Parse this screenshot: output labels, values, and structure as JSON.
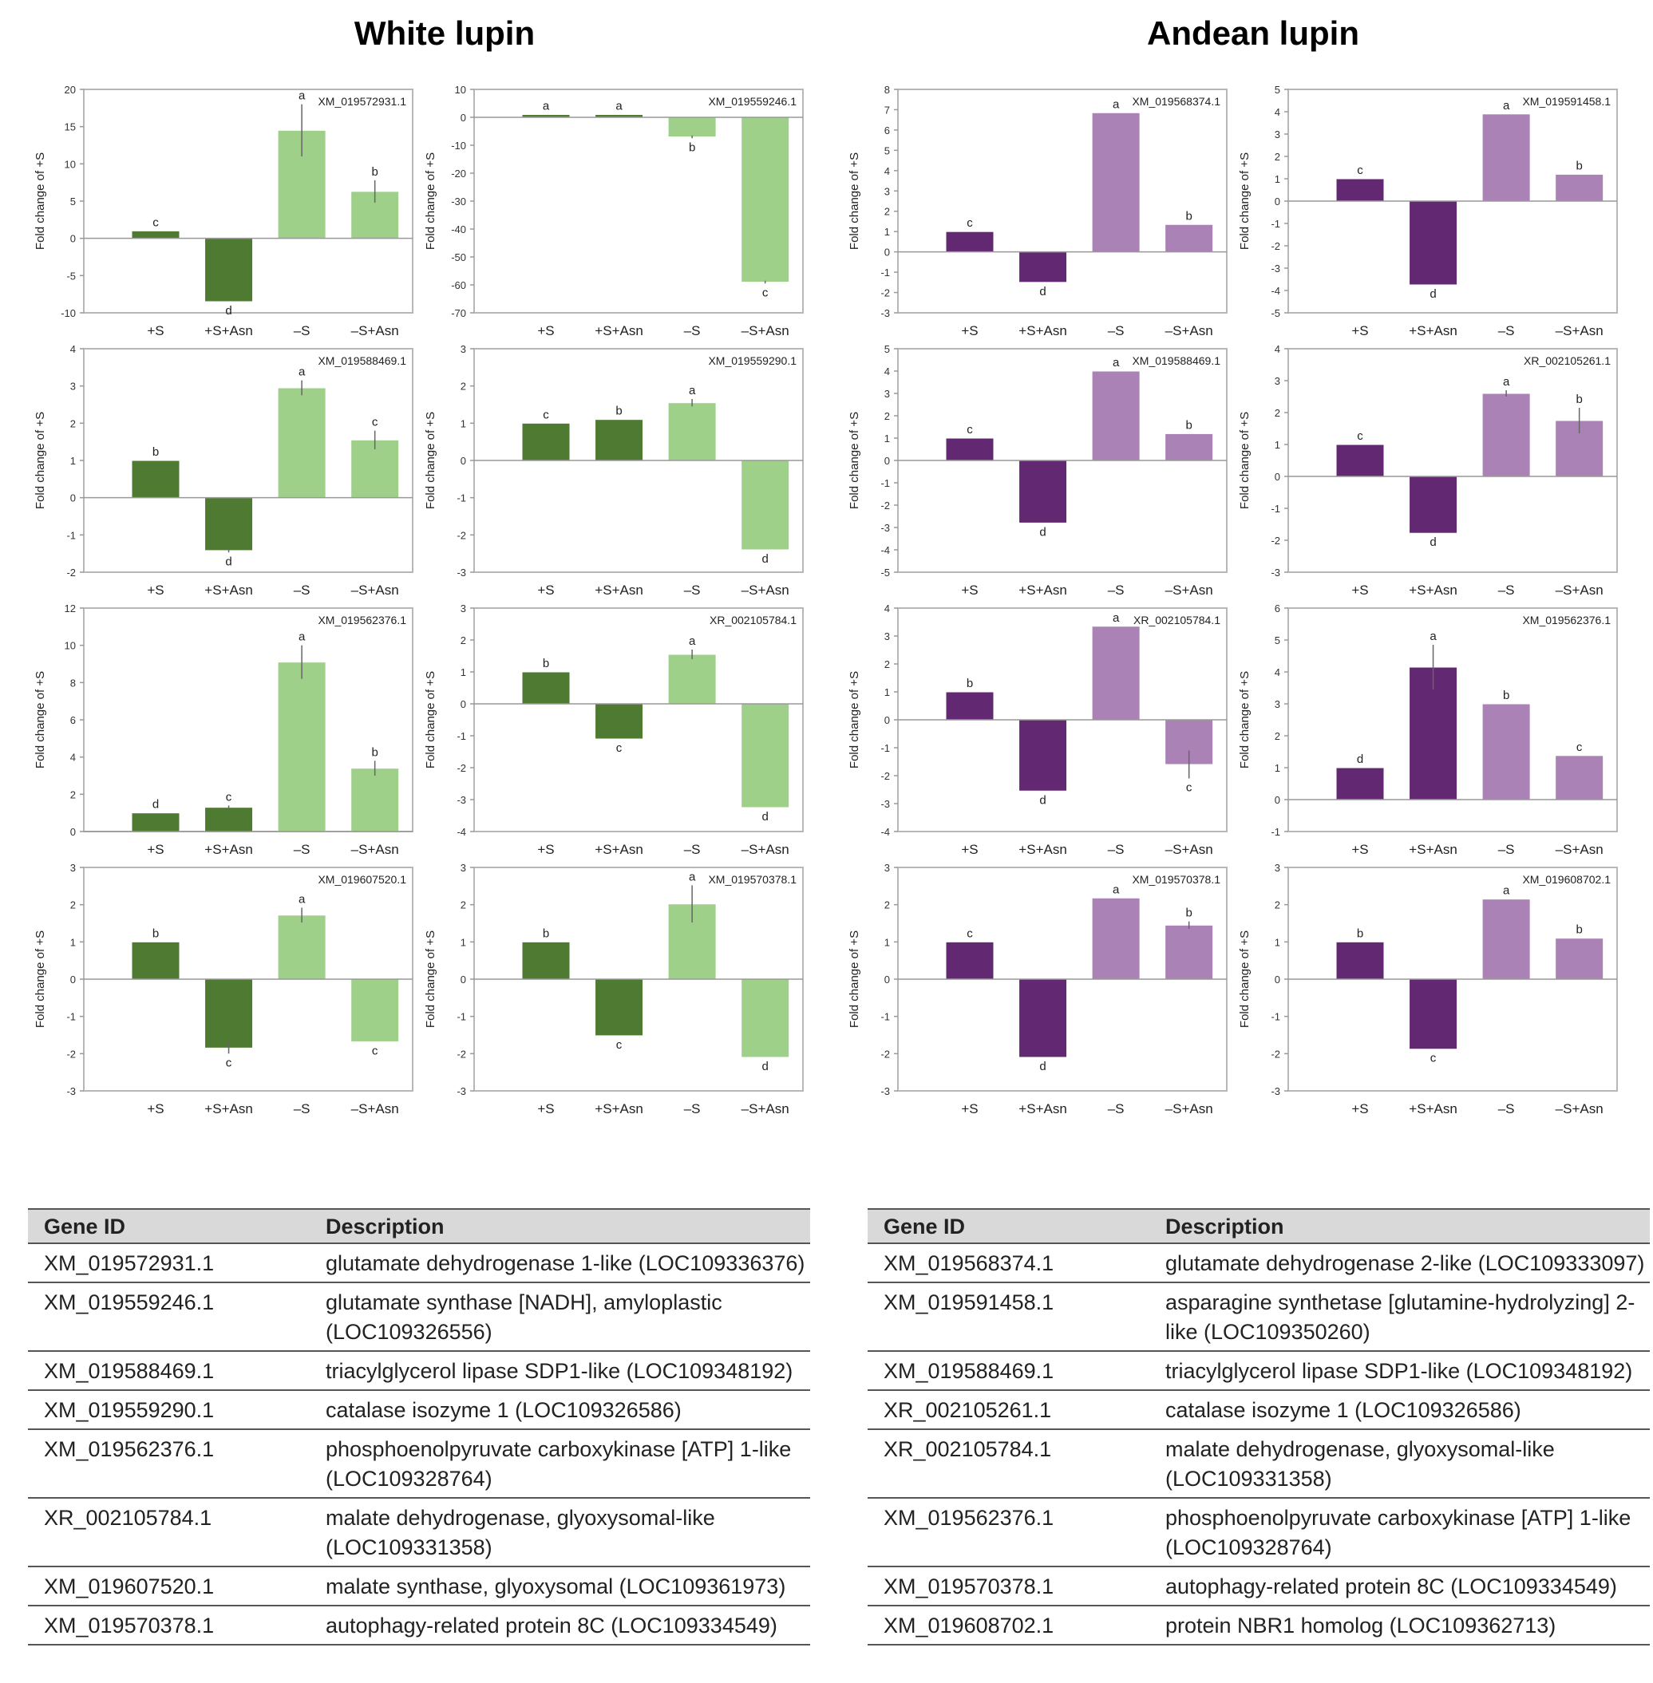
{
  "titles": {
    "white": "White lupin",
    "andean": "Andean lupin"
  },
  "shared": {
    "ylabel": "Fold change of +S",
    "categories": [
      "+S",
      "+S+Asn",
      "–S",
      "–S+Asn"
    ]
  },
  "colors": {
    "white_dark": "#4e7a31",
    "white_light": "#9fd08a",
    "andean_dark": "#632872",
    "andean_light": "#aa82b5",
    "axis": "#999999",
    "border": "#b7b7b7"
  },
  "chart_data": [
    {
      "panel": "White lupin",
      "type": "bar",
      "gene": "XM_019572931.1",
      "ylim": [
        -10,
        20
      ],
      "yticks": [
        -10,
        -5,
        0,
        5,
        10,
        15,
        20
      ],
      "values": [
        1,
        -8.5,
        14.5,
        6.3
      ],
      "errors": [
        0,
        0,
        3.5,
        1.5
      ],
      "letters": [
        "c",
        "d",
        "a",
        "b"
      ]
    },
    {
      "panel": "White lupin",
      "type": "bar",
      "gene": "XM_019559246.1",
      "ylim": [
        -70,
        10
      ],
      "yticks": [
        -70,
        -60,
        -50,
        -40,
        -30,
        -20,
        -10,
        0,
        10
      ],
      "values": [
        1,
        1,
        -7,
        -59
      ],
      "errors": [
        0,
        0,
        0.5,
        0.5
      ],
      "letters": [
        "a",
        "a",
        "b",
        "c"
      ]
    },
    {
      "panel": "White lupin",
      "type": "bar",
      "gene": "XM_019588469.1",
      "ylim": [
        -2,
        4
      ],
      "yticks": [
        -2,
        -1,
        0,
        1,
        2,
        3,
        4
      ],
      "values": [
        1,
        -1.42,
        2.95,
        1.55
      ],
      "errors": [
        0,
        0.05,
        0.2,
        0.25
      ],
      "letters": [
        "b",
        "d",
        "a",
        "c"
      ]
    },
    {
      "panel": "White lupin",
      "type": "bar",
      "gene": "XM_019559290.1",
      "ylim": [
        -3,
        3
      ],
      "yticks": [
        -3,
        -2,
        -1,
        0,
        1,
        2,
        3
      ],
      "values": [
        1,
        1.1,
        1.55,
        -2.4
      ],
      "errors": [
        0,
        0,
        0.1,
        0
      ],
      "letters": [
        "c",
        "b",
        "a",
        "d"
      ]
    },
    {
      "panel": "White lupin",
      "type": "bar",
      "gene": "XM_019562376.1",
      "ylim": [
        0,
        12
      ],
      "yticks": [
        0,
        2,
        4,
        6,
        8,
        10,
        12
      ],
      "values": [
        1,
        1.3,
        9.1,
        3.4
      ],
      "errors": [
        0,
        0.1,
        0.9,
        0.4
      ],
      "letters": [
        "d",
        "c",
        "a",
        "b"
      ]
    },
    {
      "panel": "White lupin",
      "type": "bar",
      "gene": "XR_002105784.1",
      "ylim": [
        -4,
        3
      ],
      "yticks": [
        -4,
        -3,
        -2,
        -1,
        0,
        1,
        2,
        3
      ],
      "values": [
        1,
        -1.1,
        1.55,
        -3.25
      ],
      "errors": [
        0,
        0,
        0.15,
        0
      ],
      "letters": [
        "b",
        "c",
        "a",
        "d"
      ]
    },
    {
      "panel": "White lupin",
      "type": "bar",
      "gene": "XM_019607520.1",
      "ylim": [
        -3,
        3
      ],
      "yticks": [
        -3,
        -2,
        -1,
        0,
        1,
        2,
        3
      ],
      "values": [
        1,
        -1.85,
        1.72,
        -1.68
      ],
      "errors": [
        0,
        0.15,
        0.2,
        0
      ],
      "letters": [
        "b",
        "c",
        "a",
        "c"
      ]
    },
    {
      "panel": "White lupin",
      "type": "bar",
      "gene": "XM_019570378.1",
      "ylim": [
        -3,
        3
      ],
      "yticks": [
        -3,
        -2,
        -1,
        0,
        1,
        2,
        3
      ],
      "values": [
        1,
        -1.52,
        2.02,
        -2.1
      ],
      "errors": [
        0,
        0,
        0.5,
        0
      ],
      "letters": [
        "b",
        "c",
        "a",
        "d"
      ]
    },
    {
      "panel": "Andean lupin",
      "type": "bar",
      "gene": "XM_019568374.1",
      "ylim": [
        -3,
        8
      ],
      "yticks": [
        -3,
        -2,
        -1,
        0,
        1,
        2,
        3,
        4,
        5,
        6,
        7,
        8
      ],
      "values": [
        1,
        -1.5,
        6.85,
        1.35
      ],
      "errors": [
        0,
        0,
        0,
        0
      ],
      "letters": [
        "c",
        "d",
        "a",
        "b"
      ]
    },
    {
      "panel": "Andean lupin",
      "type": "bar",
      "gene": "XM_019591458.1",
      "ylim": [
        -5,
        5
      ],
      "yticks": [
        -5,
        -4,
        -3,
        -2,
        -1,
        0,
        1,
        2,
        3,
        4,
        5
      ],
      "values": [
        1,
        -3.75,
        3.9,
        1.2
      ],
      "errors": [
        0,
        0,
        0,
        0
      ],
      "letters": [
        "c",
        "d",
        "a",
        "b"
      ]
    },
    {
      "panel": "Andean lupin",
      "type": "bar",
      "gene": "XM_019588469.1",
      "ylim": [
        -5,
        5
      ],
      "yticks": [
        -5,
        -4,
        -3,
        -2,
        -1,
        0,
        1,
        2,
        3,
        4,
        5
      ],
      "values": [
        1,
        -2.8,
        4,
        1.2
      ],
      "errors": [
        0,
        0,
        0,
        0
      ],
      "letters": [
        "c",
        "d",
        "a",
        "b"
      ]
    },
    {
      "panel": "Andean lupin",
      "type": "bar",
      "gene": "XR_002105261.1",
      "ylim": [
        -3,
        4
      ],
      "yticks": [
        -3,
        -2,
        -1,
        0,
        1,
        2,
        3,
        4
      ],
      "values": [
        1,
        -1.78,
        2.6,
        1.75
      ],
      "errors": [
        0,
        0,
        0.1,
        0.4
      ],
      "letters": [
        "c",
        "d",
        "a",
        "b"
      ]
    },
    {
      "panel": "Andean lupin",
      "type": "bar",
      "gene": "XR_002105784.1",
      "ylim": [
        -4,
        4
      ],
      "yticks": [
        -4,
        -3,
        -2,
        -1,
        0,
        1,
        2,
        3,
        4
      ],
      "values": [
        1,
        -2.55,
        3.35,
        -1.6
      ],
      "errors": [
        0,
        0,
        0,
        0.5
      ],
      "letters": [
        "b",
        "d",
        "a",
        "c"
      ]
    },
    {
      "panel": "Andean lupin",
      "type": "bar",
      "gene": "XM_019562376.1",
      "ylim": [
        -1,
        6
      ],
      "yticks": [
        -1,
        0,
        1,
        2,
        3,
        4,
        5,
        6
      ],
      "values": [
        1,
        4.15,
        3,
        1.38
      ],
      "errors": [
        0,
        0.7,
        0,
        0
      ],
      "letters": [
        "d",
        "a",
        "b",
        "c"
      ]
    },
    {
      "panel": "Andean lupin",
      "type": "bar",
      "gene": "XM_019570378.1",
      "ylim": [
        -3,
        3
      ],
      "yticks": [
        -3,
        -2,
        -1,
        0,
        1,
        2,
        3
      ],
      "values": [
        1,
        -2.1,
        2.18,
        1.45
      ],
      "errors": [
        0,
        0,
        0,
        0.1
      ],
      "letters": [
        "c",
        "d",
        "a",
        "b"
      ]
    },
    {
      "panel": "Andean lupin",
      "type": "bar",
      "gene": "XM_019608702.1",
      "ylim": [
        -3,
        3
      ],
      "yticks": [
        -3,
        -2,
        -1,
        0,
        1,
        2,
        3
      ],
      "values": [
        1,
        -1.88,
        2.15,
        1.1
      ],
      "errors": [
        0,
        0,
        0,
        0
      ],
      "letters": [
        "b",
        "c",
        "a",
        "b"
      ]
    }
  ],
  "tables": {
    "header": {
      "gene_id": "Gene ID",
      "description": "Description"
    },
    "white": [
      {
        "id": "XM_019572931.1",
        "desc": "glutamate dehydrogenase 1-like (LOC109336376)"
      },
      {
        "id": "XM_019559246.1",
        "desc": "glutamate synthase [NADH], amyloplastic (LOC109326556)"
      },
      {
        "id": "XM_019588469.1",
        "desc": "triacylglycerol lipase SDP1-like (LOC109348192)"
      },
      {
        "id": "XM_019559290.1",
        "desc": "catalase isozyme 1 (LOC109326586)"
      },
      {
        "id": "XM_019562376.1",
        "desc": "phosphoenolpyruvate carboxykinase [ATP] 1-like (LOC109328764)"
      },
      {
        "id": "XR_002105784.1",
        "desc": "malate dehydrogenase, glyoxysomal-like (LOC109331358)"
      },
      {
        "id": "XM_019607520.1",
        "desc": "malate synthase, glyoxysomal (LOC109361973)"
      },
      {
        "id": "XM_019570378.1",
        "desc": "autophagy-related protein 8C (LOC109334549)"
      }
    ],
    "andean": [
      {
        "id": "XM_019568374.1",
        "desc": "glutamate dehydrogenase 2-like (LOC109333097)"
      },
      {
        "id": "XM_019591458.1",
        "desc": "asparagine synthetase [glutamine-hydrolyzing] 2-like (LOC109350260)"
      },
      {
        "id": "XM_019588469.1",
        "desc": "triacylglycerol lipase SDP1-like (LOC109348192)"
      },
      {
        "id": "XR_002105261.1",
        "desc": "catalase isozyme 1 (LOC109326586)"
      },
      {
        "id": "XR_002105784.1",
        "desc": "malate dehydrogenase, glyoxysomal-like (LOC109331358)"
      },
      {
        "id": "XM_019562376.1",
        "desc": "phosphoenolpyruvate carboxykinase [ATP] 1-like (LOC109328764)"
      },
      {
        "id": "XM_019570378.1",
        "desc": "autophagy-related protein 8C (LOC109334549)"
      },
      {
        "id": "XM_019608702.1",
        "desc": "protein NBR1 homolog (LOC109362713)"
      }
    ]
  }
}
